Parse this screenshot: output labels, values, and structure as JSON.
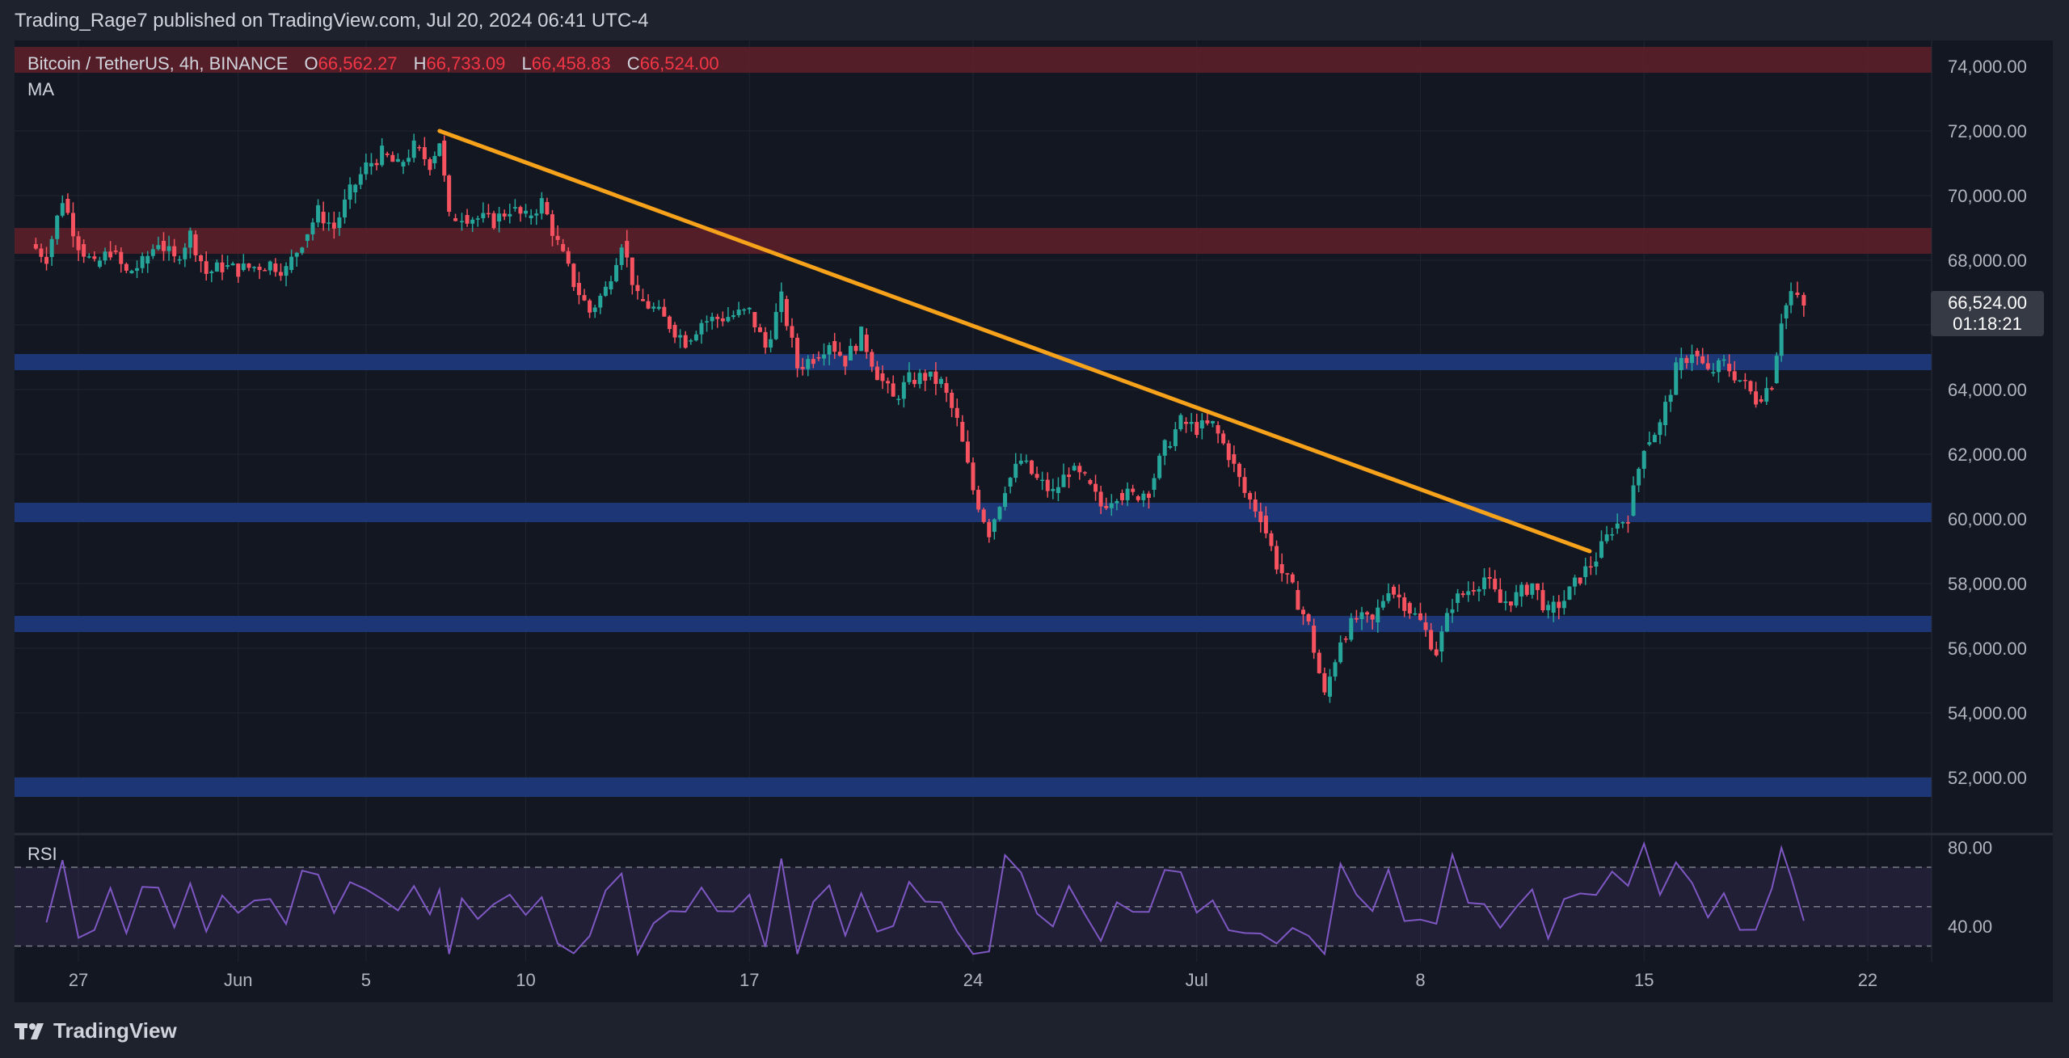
{
  "header": {
    "published_line": "Trading_Rage7 published on TradingView.com, Jul 20, 2024 06:41 UTC-4"
  },
  "legend": {
    "symbol": "Bitcoin / TetherUS, 4h, BINANCE",
    "open_label": "O",
    "open": "66,562.27",
    "high_label": "H",
    "high": "66,733.09",
    "low_label": "L",
    "low": "66,458.83",
    "close_label": "C",
    "close": "66,524.00",
    "indicator": "MA",
    "rsi_label": "RSI"
  },
  "price_tag": {
    "price": "66,524.00",
    "countdown": "01:18:21"
  },
  "footer": {
    "brand": "TradingView"
  },
  "colors": {
    "background": "#131722",
    "up": "#26a69a",
    "down": "#f7525f",
    "trendline": "#f7a21b",
    "resistance_zone": "#5c1f2a",
    "support_zone": "#1e3a80",
    "rsi_line": "#7e57c2"
  },
  "chart_data": {
    "type": "candlestick",
    "timeframe": "4h",
    "x_tick_labels": [
      "27",
      "Jun",
      "5",
      "10",
      "17",
      "24",
      "Jul",
      "8",
      "15",
      "22"
    ],
    "x_tick_days": [
      -4,
      1,
      5,
      10,
      17,
      24,
      31,
      38,
      45,
      52
    ],
    "y_ticks": [
      52000,
      54000,
      56000,
      58000,
      60000,
      62000,
      64000,
      66000,
      68000,
      70000,
      72000,
      74000
    ],
    "ylim": [
      50300,
      74800
    ],
    "close_series_days_since_may27_anchor": [
      [
        -5.5,
        68500
      ],
      [
        -5.0,
        68100
      ],
      [
        -4.5,
        69900
      ],
      [
        -4.0,
        68500
      ],
      [
        -3.5,
        67800
      ],
      [
        -3.0,
        68300
      ],
      [
        -2.5,
        67600
      ],
      [
        -2.0,
        67900
      ],
      [
        -1.5,
        68600
      ],
      [
        -1.0,
        68000
      ],
      [
        -0.5,
        68800
      ],
      [
        0.0,
        67600
      ],
      [
        0.5,
        67800
      ],
      [
        1.0,
        67700
      ],
      [
        1.5,
        67800
      ],
      [
        2.0,
        67900
      ],
      [
        2.5,
        67700
      ],
      [
        3.0,
        68600
      ],
      [
        3.5,
        69500
      ],
      [
        4.0,
        69000
      ],
      [
        4.5,
        70100
      ],
      [
        5.0,
        70900
      ],
      [
        5.5,
        71300
      ],
      [
        6.0,
        70900
      ],
      [
        6.5,
        71500
      ],
      [
        7.0,
        71000
      ],
      [
        7.3,
        71700
      ],
      [
        7.6,
        69300
      ],
      [
        8.0,
        69400
      ],
      [
        8.5,
        69300
      ],
      [
        9.0,
        69200
      ],
      [
        9.5,
        69600
      ],
      [
        10.0,
        69300
      ],
      [
        10.5,
        69800
      ],
      [
        11.0,
        68500
      ],
      [
        11.5,
        67300
      ],
      [
        12.0,
        66400
      ],
      [
        12.5,
        67100
      ],
      [
        13.0,
        68600
      ],
      [
        13.5,
        66800
      ],
      [
        14.0,
        66500
      ],
      [
        14.5,
        66000
      ],
      [
        15.0,
        65500
      ],
      [
        15.5,
        66100
      ],
      [
        16.0,
        66200
      ],
      [
        16.5,
        66300
      ],
      [
        17.0,
        66400
      ],
      [
        17.5,
        65300
      ],
      [
        18.0,
        66800
      ],
      [
        18.5,
        64700
      ],
      [
        19.0,
        65000
      ],
      [
        19.5,
        65500
      ],
      [
        20.0,
        64900
      ],
      [
        20.5,
        65700
      ],
      [
        21.0,
        64500
      ],
      [
        21.5,
        63700
      ],
      [
        22.0,
        64300
      ],
      [
        22.5,
        64400
      ],
      [
        23.0,
        64200
      ],
      [
        23.5,
        63000
      ],
      [
        24.0,
        60900
      ],
      [
        24.5,
        59600
      ],
      [
        25.0,
        61000
      ],
      [
        25.5,
        61800
      ],
      [
        26.0,
        61200
      ],
      [
        26.5,
        60800
      ],
      [
        27.0,
        61500
      ],
      [
        27.5,
        61200
      ],
      [
        28.0,
        60400
      ],
      [
        28.5,
        60800
      ],
      [
        29.0,
        60700
      ],
      [
        29.5,
        60900
      ],
      [
        30.0,
        62200
      ],
      [
        30.5,
        63000
      ],
      [
        31.0,
        62800
      ],
      [
        31.5,
        62900
      ],
      [
        32.0,
        62000
      ],
      [
        32.5,
        60800
      ],
      [
        33.0,
        60100
      ],
      [
        33.5,
        58600
      ],
      [
        34.0,
        57800
      ],
      [
        34.5,
        56700
      ],
      [
        35.0,
        54500
      ],
      [
        35.5,
        56300
      ],
      [
        36.0,
        56900
      ],
      [
        36.5,
        56800
      ],
      [
        37.0,
        57900
      ],
      [
        37.5,
        57400
      ],
      [
        38.0,
        56800
      ],
      [
        38.5,
        55900
      ],
      [
        39.0,
        57400
      ],
      [
        39.5,
        57800
      ],
      [
        40.0,
        58200
      ],
      [
        40.5,
        57400
      ],
      [
        41.0,
        57600
      ],
      [
        41.5,
        58000
      ],
      [
        42.0,
        57100
      ],
      [
        42.5,
        57500
      ],
      [
        43.0,
        58200
      ],
      [
        43.5,
        58800
      ],
      [
        44.0,
        59700
      ],
      [
        44.5,
        60100
      ],
      [
        45.0,
        62300
      ],
      [
        45.5,
        62900
      ],
      [
        46.0,
        64600
      ],
      [
        46.5,
        65200
      ],
      [
        47.0,
        64500
      ],
      [
        47.5,
        64800
      ],
      [
        48.0,
        64300
      ],
      [
        48.5,
        63700
      ],
      [
        49.0,
        64200
      ],
      [
        49.3,
        66200
      ],
      [
        49.6,
        67000
      ],
      [
        50.0,
        66524
      ]
    ],
    "horizontal_zones": [
      {
        "kind": "resistance",
        "low": 73800,
        "high": 74600
      },
      {
        "kind": "resistance",
        "low": 68200,
        "high": 69000
      },
      {
        "kind": "support",
        "low": 64600,
        "high": 65100
      },
      {
        "kind": "support",
        "low": 59900,
        "high": 60500
      },
      {
        "kind": "support",
        "low": 56500,
        "high": 57000
      },
      {
        "kind": "support",
        "low": 51400,
        "high": 52000
      }
    ],
    "trendline": {
      "start": [
        7.3,
        72000
      ],
      "end": [
        43.3,
        59000
      ]
    },
    "rsi": {
      "y_ticks": [
        40,
        80
      ],
      "ylim": [
        22,
        86
      ],
      "band": [
        30,
        70
      ],
      "midline": 50
    }
  }
}
